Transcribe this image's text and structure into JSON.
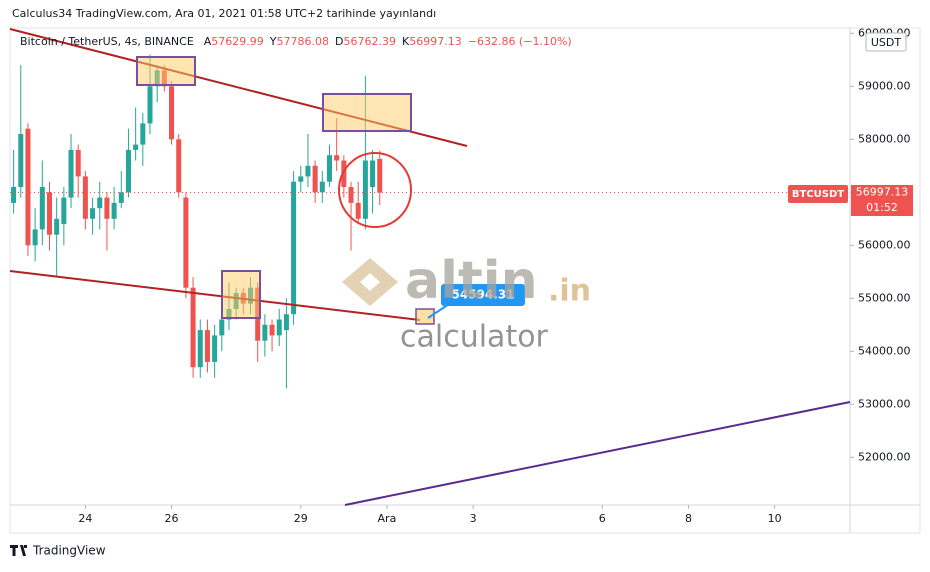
{
  "chart_data": {
    "type": "candlestick",
    "title": "Calculus34 TradingView.com, Ara 01, 2021 01:58 UTC+2 tarihinde yayınlandı",
    "symbol": "Bitcoin / TetherUS, 4s, BINANCE",
    "ohlc_prefixes": [
      "A",
      "Y",
      "D",
      "K"
    ],
    "change": "−632.86 (−1.10%)",
    "currency": "USDT",
    "ticker": "BTCUSDT",
    "countdown": "01:52",
    "annotation": "54594.31",
    "watermark": [
      "altin",
      ".in",
      "calculator"
    ],
    "footer": "TradingView",
    "up_color": "#26a69a",
    "down_color": "#ef5350",
    "open": [
      56800,
      57100,
      58200,
      56000,
      56300,
      57000,
      56200,
      56400,
      56900,
      57800,
      57300,
      56500,
      56700,
      56900,
      56500,
      56800,
      57000,
      57800,
      57900,
      58300,
      59000,
      59300,
      59000,
      58000,
      56900,
      55200,
      53700,
      54400,
      53800,
      54300,
      54600,
      54800,
      55100,
      54900,
      55200,
      54200,
      54500,
      54300,
      54400,
      54700,
      57200,
      57300,
      57500,
      57000,
      57200,
      57700,
      57600,
      57100,
      56800,
      56500,
      57100,
      57629.99
    ],
    "high": [
      57800,
      59400,
      58300,
      56700,
      57600,
      57200,
      56900,
      57100,
      58100,
      57900,
      57400,
      56900,
      57200,
      57000,
      57100,
      57400,
      58200,
      58600,
      58500,
      59600,
      59400,
      59400,
      59100,
      58100,
      57000,
      55400,
      54600,
      54600,
      54500,
      54800,
      55300,
      55200,
      55200,
      55400,
      55300,
      54700,
      54600,
      54800,
      55000,
      57400,
      57500,
      58100,
      57600,
      57400,
      57900,
      58400,
      57700,
      57200,
      57200,
      59200,
      57800,
      57786.08
    ],
    "low": [
      56600,
      56900,
      55800,
      55700,
      56000,
      55900,
      55400,
      56000,
      56700,
      56900,
      56300,
      56200,
      56300,
      55900,
      56300,
      56700,
      56900,
      57600,
      57500,
      58100,
      58700,
      58900,
      57900,
      56900,
      55000,
      53500,
      53500,
      53600,
      53500,
      54000,
      54400,
      54600,
      54700,
      54700,
      53800,
      53900,
      54000,
      54100,
      53300,
      54500,
      57000,
      57100,
      56800,
      56800,
      57100,
      57400,
      56900,
      55900,
      56400,
      56300,
      56600,
      56762.39
    ],
    "close": [
      57100,
      58100,
      56000,
      56300,
      57100,
      56200,
      56500,
      56900,
      57800,
      57300,
      56500,
      56700,
      56900,
      56500,
      56800,
      57000,
      57800,
      57900,
      58300,
      59000,
      59300,
      59000,
      58000,
      57000,
      55200,
      53700,
      54400,
      53800,
      54300,
      54600,
      54800,
      55100,
      54900,
      55200,
      54200,
      54500,
      54300,
      54600,
      54700,
      57200,
      57300,
      57500,
      57000,
      57200,
      57700,
      57600,
      57100,
      56800,
      56500,
      57600,
      57600,
      56997.13
    ],
    "xlim": [
      -0.5,
      116.5
    ],
    "xticks": [
      {
        "value": 10,
        "label": "24"
      },
      {
        "value": 22,
        "label": "26"
      },
      {
        "value": 40,
        "label": "29"
      },
      {
        "value": 52,
        "label": "Ara"
      },
      {
        "value": 64,
        "label": "3"
      },
      {
        "value": 82,
        "label": "6"
      },
      {
        "value": 94,
        "label": "8"
      },
      {
        "value": 106,
        "label": "10"
      }
    ],
    "ylim": [
      51100,
      60100
    ],
    "yticks": [
      {
        "value": 52000,
        "label": "52000.00"
      },
      {
        "value": 53000,
        "label": "53000.00"
      },
      {
        "value": 54000,
        "label": "54000.00"
      },
      {
        "value": 55000,
        "label": "55000.00"
      },
      {
        "value": 56000,
        "label": "56000.00"
      },
      {
        "value": 57000,
        "label": "57000.00"
      },
      {
        "value": 58000,
        "label": "58000.00"
      },
      {
        "value": 59000,
        "label": "59000.00"
      },
      {
        "value": 60000,
        "label": "60000.00"
      }
    ]
  }
}
